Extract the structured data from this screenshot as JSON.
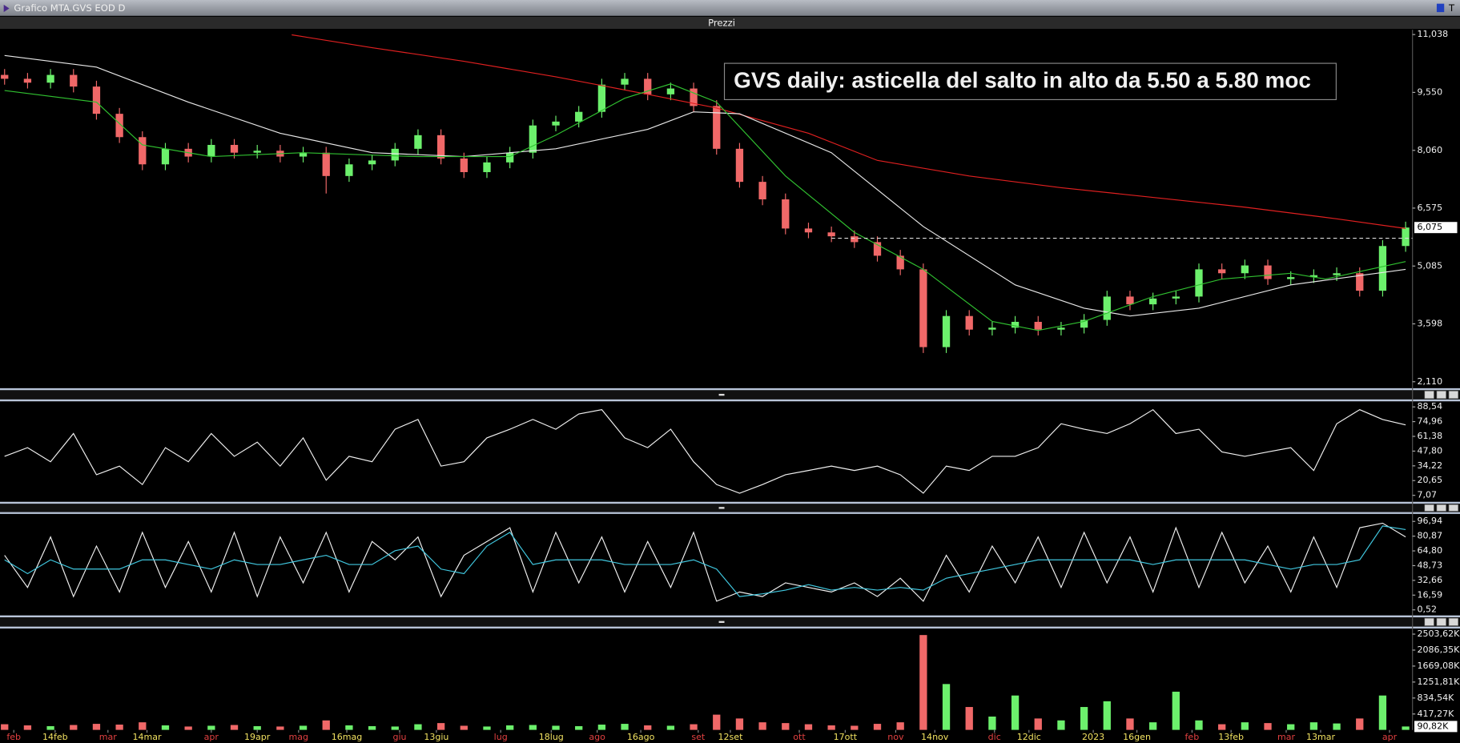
{
  "window_title": "Grafico MTA.GVS EOD D",
  "toolbar_label": "T",
  "chart_data": [
    {
      "type": "candlestick",
      "title": "Prezzi",
      "annotation": "GVS daily: asticella del salto in alto da 5.50 a 5.80 moc",
      "up_color": "#6cf06c",
      "down_color": "#f06868",
      "open": [
        10.0,
        9.9,
        9.8,
        10.0,
        9.7,
        9.0,
        8.4,
        7.7,
        8.1,
        7.9,
        8.2,
        8.0,
        8.05,
        7.9,
        8.0,
        7.4,
        7.7,
        7.8,
        8.1,
        8.45,
        7.85,
        7.5,
        7.75,
        8.0,
        8.7,
        8.8,
        9.05,
        9.75,
        9.9,
        9.5,
        9.65,
        9.2,
        8.1,
        7.25,
        6.8,
        6.05,
        5.95,
        5.85,
        5.7,
        5.35,
        5.0,
        3.0,
        3.8,
        3.45,
        3.5,
        3.65,
        3.45,
        3.5,
        3.7,
        4.3,
        4.1,
        4.25,
        4.3,
        5.0,
        4.9,
        5.1,
        4.75,
        4.8,
        4.85,
        4.9,
        4.45,
        5.6
      ],
      "high": [
        10.15,
        10.05,
        10.15,
        10.15,
        9.85,
        9.15,
        8.55,
        8.25,
        8.25,
        8.35,
        8.35,
        8.2,
        8.2,
        8.15,
        8.15,
        7.85,
        7.95,
        8.25,
        8.6,
        8.6,
        8.0,
        7.9,
        8.15,
        8.85,
        8.95,
        9.2,
        9.9,
        10.05,
        10.05,
        9.8,
        9.8,
        9.35,
        8.25,
        7.4,
        6.95,
        6.2,
        6.1,
        6.0,
        5.85,
        5.5,
        5.15,
        3.95,
        3.95,
        3.65,
        3.8,
        3.8,
        3.65,
        3.85,
        4.45,
        4.45,
        4.4,
        4.45,
        5.15,
        5.15,
        5.25,
        5.25,
        4.95,
        5.0,
        5.05,
        5.05,
        5.75,
        6.225
      ],
      "low": [
        9.75,
        9.65,
        9.65,
        9.55,
        8.85,
        8.25,
        7.55,
        7.55,
        7.75,
        7.75,
        7.85,
        7.85,
        7.75,
        7.75,
        6.95,
        7.25,
        7.55,
        7.65,
        7.95,
        7.7,
        7.35,
        7.35,
        7.6,
        7.85,
        8.55,
        8.65,
        8.9,
        9.6,
        9.35,
        9.35,
        9.05,
        7.95,
        7.1,
        6.65,
        5.9,
        5.8,
        5.7,
        5.55,
        5.2,
        4.85,
        2.85,
        2.85,
        3.3,
        3.3,
        3.35,
        3.3,
        3.3,
        3.35,
        3.55,
        3.95,
        3.95,
        4.1,
        4.15,
        4.75,
        4.75,
        4.6,
        4.6,
        4.65,
        4.7,
        4.3,
        4.3,
        5.45
      ],
      "close": [
        9.9,
        9.8,
        10.0,
        9.7,
        9.0,
        8.4,
        7.7,
        8.1,
        7.9,
        8.2,
        8.0,
        8.05,
        7.9,
        8.0,
        7.4,
        7.7,
        7.8,
        8.1,
        8.45,
        7.85,
        7.5,
        7.75,
        8.0,
        8.7,
        8.8,
        9.05,
        9.75,
        9.9,
        9.5,
        9.65,
        9.2,
        8.1,
        7.25,
        6.8,
        6.05,
        5.95,
        5.85,
        5.7,
        5.35,
        5.0,
        3.0,
        3.8,
        3.45,
        3.5,
        3.65,
        3.45,
        3.5,
        3.7,
        4.3,
        4.1,
        4.25,
        4.3,
        5.0,
        4.9,
        5.1,
        4.75,
        4.8,
        4.85,
        4.9,
        4.45,
        5.6,
        6.075
      ],
      "last_label": "6,075",
      "series": [
        {
          "color": "#e02020",
          "x": [
            12.5,
            16,
            20,
            24,
            28,
            31,
            35,
            38,
            42,
            46,
            50,
            54,
            58,
            61
          ],
          "values": [
            11.03,
            10.7,
            10.35,
            9.95,
            9.5,
            9.15,
            8.5,
            7.8,
            7.4,
            7.1,
            6.85,
            6.6,
            6.3,
            6.05
          ]
        },
        {
          "color": "#e8e8e8",
          "x": [
            0,
            4,
            8,
            12,
            16,
            20,
            24,
            28,
            30,
            32,
            36,
            40,
            44,
            47,
            49,
            52,
            56,
            61
          ],
          "values": [
            10.5,
            10.2,
            9.3,
            8.5,
            8.0,
            7.9,
            8.1,
            8.6,
            9.05,
            9.0,
            8.0,
            6.1,
            4.6,
            4.0,
            3.8,
            4.0,
            4.6,
            5.0
          ]
        },
        {
          "color": "#30c030",
          "x": [
            0,
            4,
            6,
            9,
            13,
            18,
            22,
            24,
            27,
            29,
            31,
            34,
            37,
            40,
            43,
            45,
            47,
            50,
            53,
            56,
            57.5,
            61
          ],
          "values": [
            9.6,
            9.3,
            8.2,
            7.9,
            8.0,
            7.9,
            7.9,
            8.45,
            9.4,
            9.77,
            9.3,
            7.4,
            5.95,
            5.0,
            3.66,
            3.43,
            3.66,
            4.3,
            4.75,
            4.9,
            4.75,
            5.2
          ]
        }
      ],
      "hline": 5.8,
      "ylim": [
        1.966,
        11.16
      ],
      "yticks": [
        {
          "value": 11.038,
          "label": "11,038"
        },
        {
          "value": 9.55,
          "label": "9,550"
        },
        {
          "value": 8.06,
          "label": "8,060"
        },
        {
          "value": 6.575,
          "label": "6,575"
        },
        {
          "value": 5.085,
          "label": "5,085"
        },
        {
          "value": 3.598,
          "label": "3,598"
        },
        {
          "value": 2.11,
          "label": "2,110"
        }
      ]
    },
    {
      "type": "line",
      "series": [
        {
          "color": "#f0f0f0",
          "values": [
            43,
            51,
            38,
            64,
            26,
            34,
            17,
            51,
            38,
            64,
            43,
            56,
            34,
            60,
            21,
            43,
            38,
            68,
            77,
            34,
            38,
            60,
            68,
            77,
            68,
            82,
            86,
            60,
            51,
            68,
            38,
            17,
            9,
            17,
            26,
            30,
            34,
            30,
            34,
            26,
            9,
            34,
            30,
            43,
            43,
            51,
            73,
            68,
            64,
            73,
            86,
            64,
            68,
            47,
            43,
            47,
            51,
            30,
            73,
            86,
            77,
            72
          ]
        }
      ],
      "ylim": [
        1.92,
        92.83
      ],
      "yticks": [
        {
          "value": 88.54,
          "label": "88,54"
        },
        {
          "value": 74.96,
          "label": "74,96"
        },
        {
          "value": 61.38,
          "label": "61,38"
        },
        {
          "value": 47.8,
          "label": "47,80"
        },
        {
          "value": 34.22,
          "label": "34,22"
        },
        {
          "value": 20.65,
          "label": "20,65"
        },
        {
          "value": 7.07,
          "label": "7,07"
        }
      ]
    },
    {
      "type": "line",
      "series": [
        {
          "color": "#f0f0f0",
          "values": [
            60,
            25,
            80,
            15,
            70,
            20,
            85,
            25,
            75,
            20,
            85,
            15,
            80,
            30,
            85,
            20,
            75,
            55,
            80,
            15,
            60,
            75,
            90,
            20,
            85,
            30,
            80,
            20,
            75,
            25,
            85,
            10,
            20,
            15,
            30,
            25,
            20,
            30,
            15,
            35,
            10,
            60,
            20,
            70,
            30,
            80,
            25,
            85,
            30,
            80,
            20,
            90,
            25,
            85,
            30,
            70,
            20,
            80,
            25,
            90,
            95,
            80
          ]
        },
        {
          "color": "#40c8e0",
          "values": [
            55,
            40,
            55,
            45,
            45,
            45,
            55,
            55,
            50,
            45,
            55,
            50,
            50,
            55,
            60,
            50,
            50,
            65,
            70,
            45,
            40,
            70,
            85,
            50,
            55,
            55,
            55,
            50,
            50,
            50,
            55,
            45,
            15,
            18,
            22,
            28,
            22,
            25,
            22,
            25,
            22,
            35,
            40,
            45,
            50,
            55,
            55,
            55,
            55,
            55,
            50,
            55,
            55,
            55,
            55,
            50,
            45,
            50,
            50,
            55,
            92,
            88
          ]
        }
      ],
      "ylim": [
        -4.55,
        104.05
      ],
      "yticks": [
        {
          "value": 96.94,
          "label": "96,94"
        },
        {
          "value": 80.87,
          "label": "80,87"
        },
        {
          "value": 64.8,
          "label": "64,80"
        },
        {
          "value": 48.73,
          "label": "48,73"
        },
        {
          "value": 32.66,
          "label": "32,66"
        },
        {
          "value": 16.59,
          "label": "16,59"
        },
        {
          "value": 0.52,
          "label": "0,52"
        }
      ]
    },
    {
      "type": "bar",
      "values": [
        150,
        120,
        100,
        130,
        160,
        140,
        200,
        120,
        90,
        110,
        130,
        100,
        90,
        110,
        250,
        120,
        100,
        90,
        150,
        180,
        110,
        90,
        120,
        130,
        110,
        100,
        140,
        160,
        120,
        110,
        150,
        400,
        300,
        200,
        180,
        150,
        120,
        110,
        160,
        200,
        2480,
        1200,
        600,
        350,
        900,
        300,
        250,
        600,
        750,
        300,
        200,
        1000,
        250,
        150,
        200,
        180,
        150,
        200,
        170,
        300,
        900,
        90.82
      ],
      "last_label": "90,82K",
      "ylim": [
        0,
        2627
      ],
      "yticks": [
        {
          "value": 2503.62,
          "label": "2503,62K"
        },
        {
          "value": 2086.35,
          "label": "2086,35K"
        },
        {
          "value": 1669.08,
          "label": "1669,08K"
        },
        {
          "value": 1251.81,
          "label": "1251,81K"
        },
        {
          "value": 834.54,
          "label": "834,54K"
        },
        {
          "value": 417.27,
          "label": "417,27K"
        }
      ],
      "xlim": [
        -0.2,
        61.3
      ],
      "tick_color": "#f0e060",
      "month_tick_color": "#e04040",
      "xticks": [
        {
          "value": 2.2,
          "label": "14feb"
        },
        {
          "value": 6.2,
          "label": "14mar"
        },
        {
          "value": 11.0,
          "label": "19apr"
        },
        {
          "value": 14.9,
          "label": "16mag"
        },
        {
          "value": 18.8,
          "label": "13giu"
        },
        {
          "value": 23.8,
          "label": "18lug"
        },
        {
          "value": 27.7,
          "label": "16ago"
        },
        {
          "value": 31.6,
          "label": "12set"
        },
        {
          "value": 36.6,
          "label": "17ott"
        },
        {
          "value": 40.5,
          "label": "14nov"
        },
        {
          "value": 44.6,
          "label": "12dic"
        },
        {
          "value": 47.4,
          "label": "2023"
        },
        {
          "value": 49.3,
          "label": "16gen"
        },
        {
          "value": 53.4,
          "label": "13feb"
        },
        {
          "value": 57.3,
          "label": "13mar"
        }
      ],
      "month_ticks": [
        {
          "value": 0.4,
          "label": "feb"
        },
        {
          "value": 4.5,
          "label": "mar"
        },
        {
          "value": 9.0,
          "label": "apr"
        },
        {
          "value": 12.8,
          "label": "mag"
        },
        {
          "value": 17.2,
          "label": "giu"
        },
        {
          "value": 21.6,
          "label": "lug"
        },
        {
          "value": 25.8,
          "label": "ago"
        },
        {
          "value": 30.2,
          "label": "set"
        },
        {
          "value": 34.6,
          "label": "ott"
        },
        {
          "value": 38.8,
          "label": "nov"
        },
        {
          "value": 43.1,
          "label": "dic"
        },
        {
          "value": 51.7,
          "label": "feb"
        },
        {
          "value": 55.8,
          "label": "mar"
        },
        {
          "value": 60.3,
          "label": "apr"
        }
      ]
    }
  ]
}
